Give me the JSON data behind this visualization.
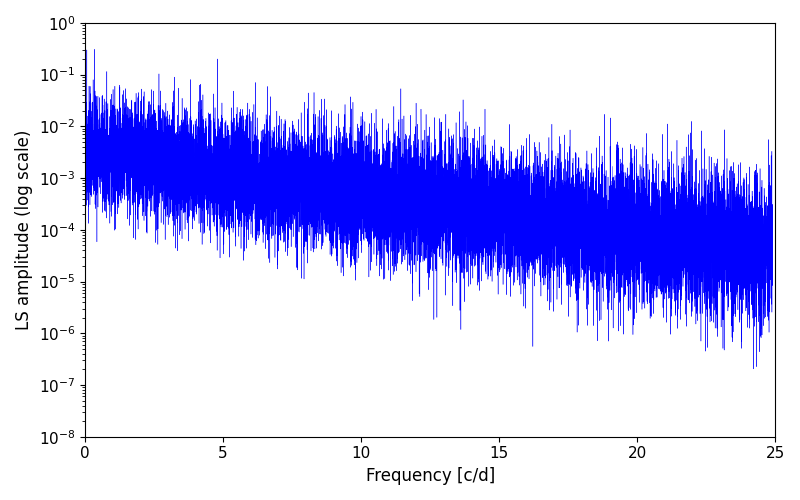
{
  "title": "",
  "xlabel": "Frequency [c/d]",
  "ylabel": "LS amplitude (log scale)",
  "xlim": [
    0,
    25
  ],
  "ylim": [
    1e-08,
    1.0
  ],
  "line_color": "#0000ff",
  "line_width": 0.3,
  "background_color": "#ffffff",
  "n_points": 15000,
  "freq_max": 24.9,
  "peak_amplitude": 0.3,
  "base_amplitude_log": -2.5,
  "decay_rate": 0.18,
  "noise_std_low": 1.2,
  "noise_std_high": 1.6,
  "min_amplitude": 5e-09,
  "figsize": [
    8.0,
    5.0
  ],
  "dpi": 100,
  "tick_fontsize": 11,
  "label_fontsize": 12,
  "yscale": "log",
  "seed": 42
}
